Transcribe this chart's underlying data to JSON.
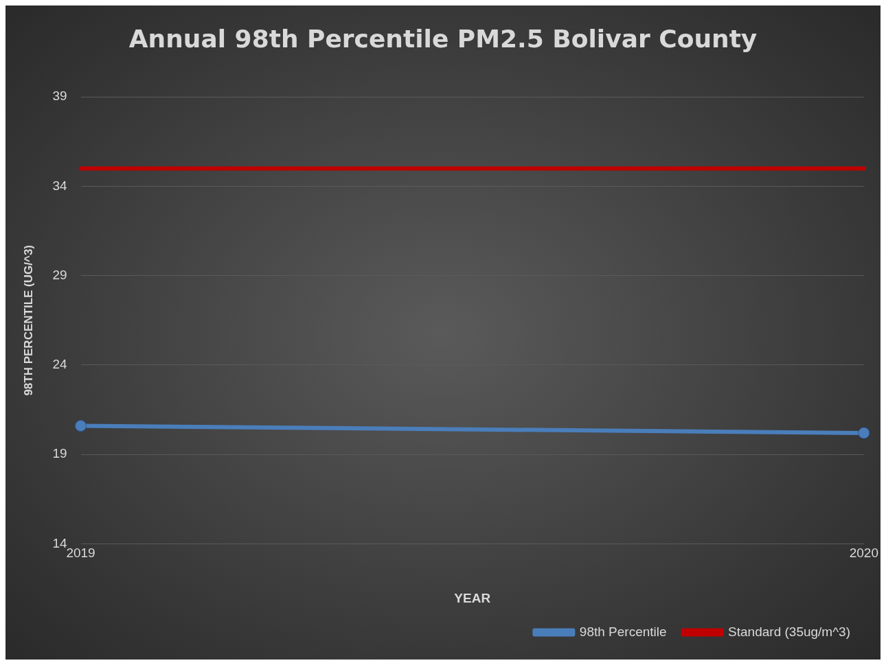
{
  "chart_data": {
    "type": "line",
    "title": "Annual 98th Percentile PM2.5 Bolivar County",
    "xlabel": "YEAR",
    "ylabel": "98TH PERCENTILE (UG/^3)",
    "x": [
      2019,
      2020
    ],
    "xlim": [
      2019,
      2020
    ],
    "xticks": [
      2019,
      2020
    ],
    "ylim": [
      14,
      39
    ],
    "yticks": [
      14,
      19,
      24,
      29,
      34,
      39
    ],
    "grid": "y",
    "legend": "bottom right",
    "series": [
      {
        "name": "98th Percentile",
        "color": "#4a7ebb",
        "values": [
          20.6,
          20.2
        ],
        "marker": "circle"
      },
      {
        "name": "Standard (35ug/m^3)",
        "color": "#c00000",
        "values": [
          35,
          35
        ],
        "marker": "none"
      }
    ]
  }
}
